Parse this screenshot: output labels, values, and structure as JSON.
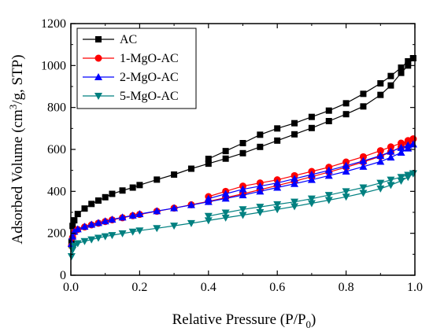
{
  "chart_data": {
    "type": "line",
    "title": "",
    "xlabel": "Relative Pressure (P/P",
    "xlabel_sub": "0",
    "xlabel_end": ")",
    "ylabel": "Adsorbed Volume (cm",
    "ylabel_sup": "3",
    "ylabel_end": "/g, STP)",
    "xlim": [
      0,
      1.0
    ],
    "ylim": [
      0,
      1200
    ],
    "xticks": [
      "0.0",
      "0.2",
      "0.4",
      "0.6",
      "0.8",
      "1.0"
    ],
    "yticks": [
      "0",
      "200",
      "400",
      "600",
      "800",
      "1000",
      "1200"
    ],
    "grid": false,
    "legend_position": "top-left",
    "series": [
      {
        "name": "AC",
        "color": "#000000",
        "marker": "square",
        "adsorption": [
          [
            0.002,
            160
          ],
          [
            0.005,
            235
          ],
          [
            0.01,
            262
          ],
          [
            0.02,
            292
          ],
          [
            0.04,
            318
          ],
          [
            0.06,
            340
          ],
          [
            0.08,
            356
          ],
          [
            0.1,
            372
          ],
          [
            0.12,
            388
          ],
          [
            0.15,
            404
          ],
          [
            0.18,
            418
          ],
          [
            0.2,
            430
          ],
          [
            0.25,
            456
          ],
          [
            0.3,
            480
          ],
          [
            0.35,
            508
          ],
          [
            0.4,
            532
          ],
          [
            0.45,
            556
          ],
          [
            0.5,
            582
          ],
          [
            0.55,
            612
          ],
          [
            0.6,
            642
          ],
          [
            0.65,
            672
          ],
          [
            0.7,
            702
          ],
          [
            0.75,
            735
          ],
          [
            0.8,
            768
          ],
          [
            0.85,
            805
          ],
          [
            0.9,
            860
          ],
          [
            0.93,
            905
          ],
          [
            0.96,
            965
          ],
          [
            0.98,
            1000
          ],
          [
            0.995,
            1035
          ]
        ],
        "desorption": [
          [
            0.995,
            1035
          ],
          [
            0.98,
            1020
          ],
          [
            0.96,
            990
          ],
          [
            0.93,
            950
          ],
          [
            0.9,
            915
          ],
          [
            0.85,
            865
          ],
          [
            0.8,
            820
          ],
          [
            0.75,
            785
          ],
          [
            0.7,
            755
          ],
          [
            0.65,
            725
          ],
          [
            0.6,
            700
          ],
          [
            0.55,
            670
          ],
          [
            0.5,
            630
          ],
          [
            0.45,
            592
          ],
          [
            0.4,
            555
          ]
        ]
      },
      {
        "name": "1-MgO-AC",
        "color": "#ff0000",
        "marker": "circle",
        "adsorption": [
          [
            0.002,
            140
          ],
          [
            0.005,
            180
          ],
          [
            0.01,
            205
          ],
          [
            0.02,
            218
          ],
          [
            0.04,
            230
          ],
          [
            0.06,
            240
          ],
          [
            0.08,
            248
          ],
          [
            0.1,
            256
          ],
          [
            0.12,
            264
          ],
          [
            0.15,
            274
          ],
          [
            0.18,
            284
          ],
          [
            0.2,
            290
          ],
          [
            0.25,
            305
          ],
          [
            0.3,
            320
          ],
          [
            0.35,
            336
          ],
          [
            0.4,
            352
          ],
          [
            0.45,
            370
          ],
          [
            0.5,
            388
          ],
          [
            0.55,
            408
          ],
          [
            0.6,
            428
          ],
          [
            0.65,
            448
          ],
          [
            0.7,
            470
          ],
          [
            0.75,
            492
          ],
          [
            0.8,
            515
          ],
          [
            0.85,
            540
          ],
          [
            0.9,
            567
          ],
          [
            0.93,
            588
          ],
          [
            0.96,
            612
          ],
          [
            0.98,
            632
          ],
          [
            0.995,
            650
          ]
        ],
        "desorption": [
          [
            0.995,
            650
          ],
          [
            0.98,
            642
          ],
          [
            0.96,
            630
          ],
          [
            0.93,
            612
          ],
          [
            0.9,
            594
          ],
          [
            0.85,
            565
          ],
          [
            0.8,
            540
          ],
          [
            0.75,
            515
          ],
          [
            0.7,
            495
          ],
          [
            0.65,
            475
          ],
          [
            0.6,
            455
          ],
          [
            0.55,
            440
          ],
          [
            0.5,
            425
          ],
          [
            0.45,
            400
          ],
          [
            0.4,
            375
          ]
        ]
      },
      {
        "name": "2-MgO-AC",
        "color": "#0000ff",
        "marker": "triangle-up",
        "adsorption": [
          [
            0.002,
            150
          ],
          [
            0.005,
            185
          ],
          [
            0.01,
            208
          ],
          [
            0.02,
            220
          ],
          [
            0.04,
            232
          ],
          [
            0.06,
            242
          ],
          [
            0.08,
            250
          ],
          [
            0.1,
            258
          ],
          [
            0.12,
            266
          ],
          [
            0.15,
            276
          ],
          [
            0.18,
            285
          ],
          [
            0.2,
            292
          ],
          [
            0.25,
            306
          ],
          [
            0.3,
            320
          ],
          [
            0.35,
            335
          ],
          [
            0.4,
            350
          ],
          [
            0.45,
            366
          ],
          [
            0.5,
            382
          ],
          [
            0.55,
            400
          ],
          [
            0.6,
            418
          ],
          [
            0.65,
            436
          ],
          [
            0.7,
            455
          ],
          [
            0.75,
            475
          ],
          [
            0.8,
            495
          ],
          [
            0.85,
            518
          ],
          [
            0.9,
            542
          ],
          [
            0.93,
            562
          ],
          [
            0.96,
            585
          ],
          [
            0.98,
            605
          ],
          [
            0.995,
            625
          ]
        ],
        "desorption": [
          [
            0.995,
            625
          ],
          [
            0.98,
            620
          ],
          [
            0.96,
            608
          ],
          [
            0.93,
            590
          ],
          [
            0.9,
            570
          ],
          [
            0.85,
            545
          ],
          [
            0.8,
            522
          ],
          [
            0.75,
            500
          ],
          [
            0.7,
            480
          ],
          [
            0.65,
            460
          ],
          [
            0.6,
            440
          ],
          [
            0.55,
            425
          ],
          [
            0.5,
            410
          ],
          [
            0.45,
            388
          ],
          [
            0.4,
            365
          ]
        ]
      },
      {
        "name": "5-MgO-AC",
        "color": "#008080",
        "marker": "triangle-down",
        "adsorption": [
          [
            0.002,
            90
          ],
          [
            0.005,
            120
          ],
          [
            0.01,
            140
          ],
          [
            0.02,
            152
          ],
          [
            0.04,
            162
          ],
          [
            0.06,
            170
          ],
          [
            0.08,
            178
          ],
          [
            0.1,
            185
          ],
          [
            0.12,
            191
          ],
          [
            0.15,
            199
          ],
          [
            0.18,
            207
          ],
          [
            0.2,
            213
          ],
          [
            0.25,
            224
          ],
          [
            0.3,
            236
          ],
          [
            0.35,
            248
          ],
          [
            0.4,
            261
          ],
          [
            0.45,
            274
          ],
          [
            0.5,
            287
          ],
          [
            0.55,
            300
          ],
          [
            0.6,
            314
          ],
          [
            0.65,
            328
          ],
          [
            0.7,
            343
          ],
          [
            0.75,
            358
          ],
          [
            0.8,
            374
          ],
          [
            0.85,
            392
          ],
          [
            0.9,
            413
          ],
          [
            0.93,
            430
          ],
          [
            0.96,
            450
          ],
          [
            0.98,
            468
          ],
          [
            0.995,
            485
          ]
        ],
        "desorption": [
          [
            0.995,
            485
          ],
          [
            0.98,
            478
          ],
          [
            0.96,
            468
          ],
          [
            0.93,
            455
          ],
          [
            0.9,
            440
          ],
          [
            0.85,
            418
          ],
          [
            0.8,
            400
          ],
          [
            0.75,
            382
          ],
          [
            0.7,
            365
          ],
          [
            0.65,
            350
          ],
          [
            0.6,
            338
          ],
          [
            0.55,
            326
          ],
          [
            0.5,
            314
          ],
          [
            0.45,
            298
          ],
          [
            0.4,
            282
          ]
        ]
      }
    ]
  }
}
